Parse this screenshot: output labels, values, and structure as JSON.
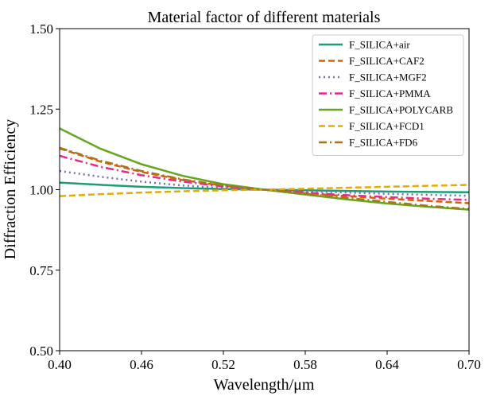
{
  "chart_data": {
    "type": "line",
    "title": "Material factor of different materials",
    "xlabel": "Wavelength/μm",
    "ylabel": "Diffraction Efficiency",
    "xlim": [
      0.4,
      0.7
    ],
    "ylim": [
      0.5,
      1.5
    ],
    "xticks": [
      "0.40",
      "0.46",
      "0.52",
      "0.58",
      "0.64",
      "0.70"
    ],
    "yticks": [
      "0.50",
      "0.75",
      "1.00",
      "1.25",
      "1.50"
    ],
    "grid": false,
    "legend_position": "top-right",
    "x": [
      0.4,
      0.43,
      0.46,
      0.49,
      0.52,
      0.55,
      0.58,
      0.61,
      0.64,
      0.67,
      0.7
    ],
    "series": [
      {
        "name": "F_SILICA+air",
        "color": "#1b9e77",
        "dash": "solid",
        "values": [
          1.022,
          1.015,
          1.009,
          1.005,
          1.002,
          1.0,
          0.998,
          0.996,
          0.994,
          0.993,
          0.992
        ]
      },
      {
        "name": "F_SILICA+CAF2",
        "color": "#d95f02",
        "dash": "dashed",
        "values": [
          1.128,
          1.087,
          1.055,
          1.03,
          1.012,
          1.0,
          0.989,
          0.98,
          0.972,
          0.965,
          0.958
        ]
      },
      {
        "name": "F_SILICA+MGF2",
        "color": "#7570b3",
        "dash": "dotted",
        "values": [
          1.058,
          1.04,
          1.025,
          1.013,
          1.005,
          1.0,
          0.995,
          0.991,
          0.987,
          0.984,
          0.981
        ]
      },
      {
        "name": "F_SILICA+PMMA",
        "color": "#e7298a",
        "dash": "dashdot",
        "values": [
          1.105,
          1.071,
          1.045,
          1.025,
          1.01,
          1.0,
          0.991,
          0.983,
          0.977,
          0.972,
          0.968
        ]
      },
      {
        "name": "F_SILICA+POLYCARB",
        "color": "#66a61e",
        "dash": "solid",
        "values": [
          1.19,
          1.127,
          1.079,
          1.043,
          1.017,
          1.0,
          0.985,
          0.97,
          0.957,
          0.947,
          0.938
        ]
      },
      {
        "name": "F_SILICA+FCD1",
        "color": "#e6ab02",
        "dash": "dashed",
        "values": [
          0.98,
          0.986,
          0.991,
          0.995,
          0.998,
          1.0,
          1.003,
          1.006,
          1.009,
          1.012,
          1.015
        ]
      },
      {
        "name": "F_SILICA+FD6",
        "color": "#a6761d",
        "dash": "dashdot",
        "values": [
          1.13,
          1.09,
          1.058,
          1.032,
          1.013,
          1.0,
          0.987,
          0.975,
          0.962,
          0.95,
          0.94
        ]
      }
    ]
  }
}
